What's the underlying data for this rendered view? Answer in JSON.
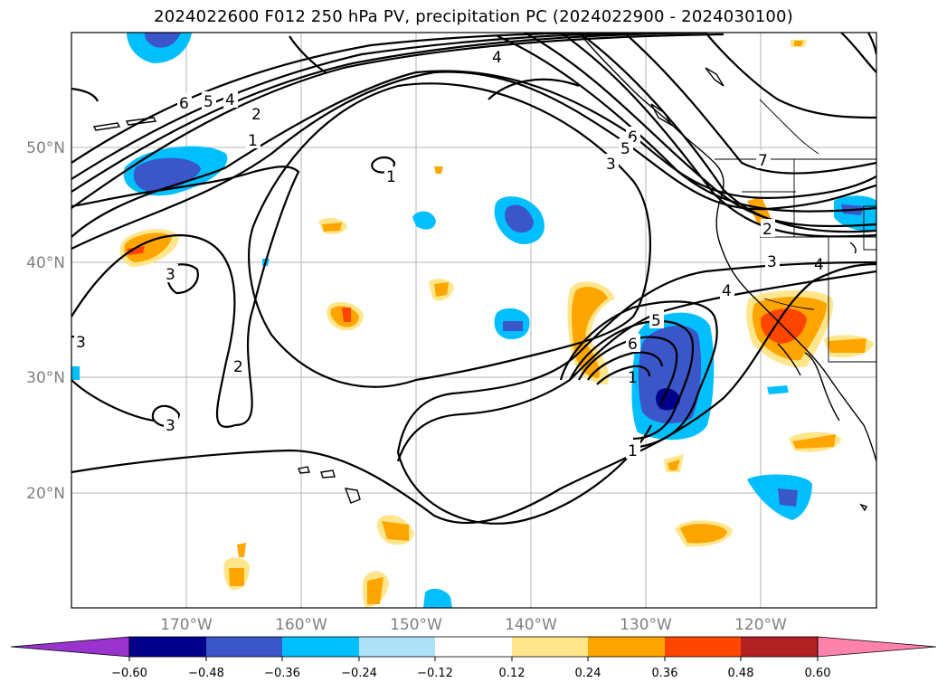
{
  "title": "2024022600 F012 250 hPa PV, precipitation PC (2024022900 - 2024030100)",
  "map": {
    "lat_labels": [
      "50°N",
      "40°N",
      "30°N",
      "20°N"
    ],
    "lon_labels": [
      "170°W",
      "160°W",
      "150°W",
      "140°W",
      "130°W",
      "120°W"
    ],
    "contour_labels": [
      "6",
      "5",
      "4",
      "2",
      "1",
      "1",
      "4",
      "6",
      "5",
      "3",
      "7",
      "2",
      "3",
      "4",
      "3",
      "3",
      "2",
      "3",
      "5",
      "6",
      "1",
      "1",
      "4"
    ]
  },
  "colorbar": {
    "ticks": [
      "−0.60",
      "−0.48",
      "−0.36",
      "−0.24",
      "−0.12",
      "0.12",
      "0.24",
      "0.36",
      "0.48",
      "0.60"
    ],
    "colors": {
      "under": "#9a32cd",
      "bins": [
        "#00008b",
        "#3a56c8",
        "#00bfff",
        "#aee2f8",
        "#ffffff",
        "#ffe68c",
        "#ffa500",
        "#ff4500",
        "#b22222"
      ],
      "over": "#ff82ab"
    }
  }
}
